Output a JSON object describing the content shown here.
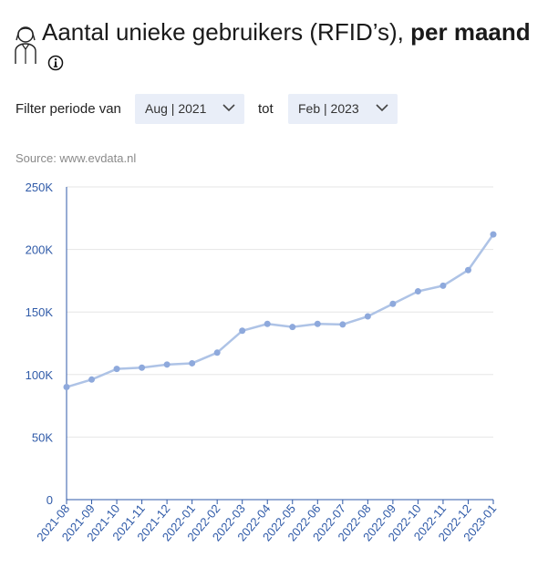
{
  "header": {
    "title_main": "Aantal unieke gebruikers (RFID’s), ",
    "title_bold": "per maand",
    "user_icon": "user-portrait-icon",
    "info_icon": "info-icon"
  },
  "filter": {
    "from_label": "Filter periode van",
    "from_value": "Aug | 2021",
    "to_label": "tot",
    "to_value": "Feb | 2023"
  },
  "source": "Source: www.evdata.nl",
  "colors": {
    "line": "#aec3e6",
    "point": "#8ea9dc",
    "axis": "#2f5aa8",
    "grid": "#e6e6e6",
    "select_bg": "#e9eef8"
  },
  "chart_data": {
    "type": "line",
    "title": "",
    "xlabel": "",
    "ylabel": "",
    "ylim": [
      0,
      250000
    ],
    "yticks": [
      0,
      50000,
      100000,
      150000,
      200000,
      250000
    ],
    "ytick_labels": [
      "0",
      "50K",
      "100K",
      "150K",
      "200K",
      "250K"
    ],
    "grid": true,
    "categories": [
      "2021-08",
      "2021-09",
      "2021-10",
      "2021-11",
      "2021-12",
      "2022-01",
      "2022-02",
      "2022-03",
      "2022-04",
      "2022-05",
      "2022-06",
      "2022-07",
      "2022-08",
      "2022-09",
      "2022-10",
      "2022-11",
      "2022-12",
      "2023-01"
    ],
    "series": [
      {
        "values": [
          90000,
          96000,
          104500,
          105500,
          108000,
          109000,
          117500,
          135000,
          140500,
          138000,
          140500,
          140000,
          146500,
          156500,
          166500,
          171000,
          183500,
          212000
        ]
      }
    ]
  }
}
